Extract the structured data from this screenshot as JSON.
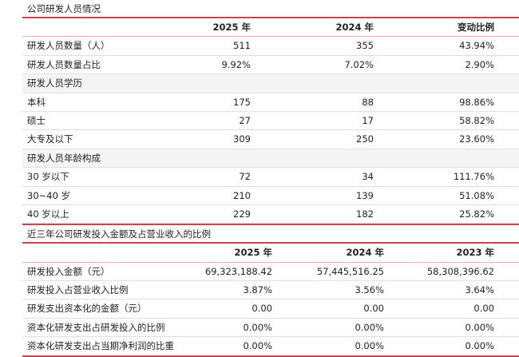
{
  "personnel": {
    "title": "公司研发人员情况",
    "headers": [
      "",
      "2025 年",
      "2024 年",
      "变动比例"
    ],
    "rows": [
      {
        "label": "研发人员数量（人）",
        "v": [
          "511",
          "355",
          "43.94%"
        ]
      },
      {
        "label": "研发人员数量占比",
        "v": [
          "9.92%",
          "7.02%",
          "2.90%"
        ]
      },
      {
        "label": "研发人员学历",
        "v": [
          "",
          "",
          ""
        ],
        "section": true
      },
      {
        "label": "本科",
        "v": [
          "175",
          "88",
          "98.86%"
        ]
      },
      {
        "label": "硕士",
        "v": [
          "27",
          "17",
          "58.82%"
        ]
      },
      {
        "label": "大专及以下",
        "v": [
          "309",
          "250",
          "23.60%"
        ]
      },
      {
        "label": "研发人员年龄构成",
        "v": [
          "",
          "",
          ""
        ],
        "section": true
      },
      {
        "label": "30 岁以下",
        "v": [
          "72",
          "34",
          "111.76%"
        ]
      },
      {
        "label": "30~40 岁",
        "v": [
          "210",
          "139",
          "51.08%"
        ]
      },
      {
        "label": "40 岁以上",
        "v": [
          "229",
          "182",
          "25.82%"
        ]
      }
    ]
  },
  "investment": {
    "title": "近三年公司研发投入金额及占营业收入的比例",
    "headers": [
      "",
      "2025 年",
      "2024 年",
      "2023 年"
    ],
    "rows": [
      {
        "label": "研发投入金额（元）",
        "v": [
          "69,323,188.42",
          "57,445,516.25",
          "58,308,396.62"
        ]
      },
      {
        "label": "研发投入占营业收入比例",
        "v": [
          "3.87%",
          "3.56%",
          "3.64%"
        ]
      },
      {
        "label": "研发支出资本化的金额（元）",
        "v": [
          "0.00",
          "0.00",
          "0.00"
        ]
      },
      {
        "label": "资本化研发支出占研发投入的比例",
        "v": [
          "0.00%",
          "0.00%",
          "0.00%"
        ]
      },
      {
        "label": "资本化研发支出占当期净利润的比重",
        "v": [
          "0.00%",
          "0.00%",
          "0.00%"
        ]
      }
    ]
  },
  "colors": {
    "accent": "#c8464a",
    "section_bg": "#f4f4f4"
  }
}
